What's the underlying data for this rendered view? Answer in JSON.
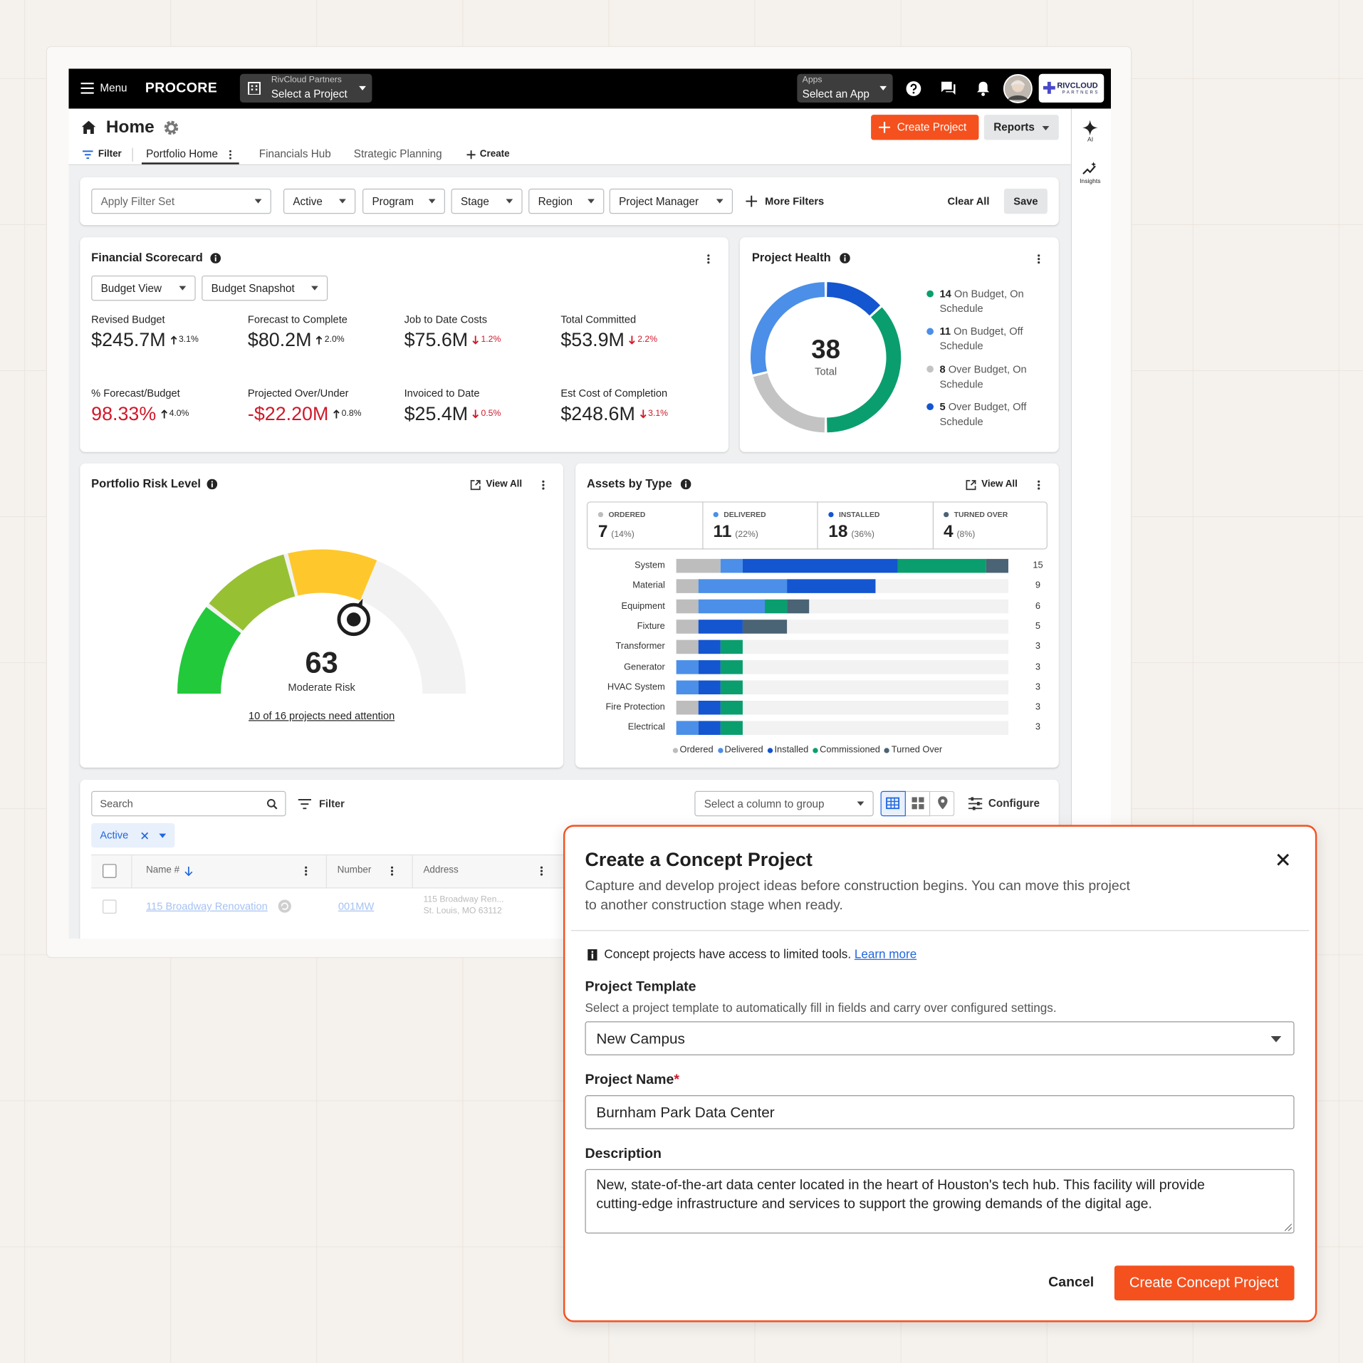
{
  "nav": {
    "menu": "Menu",
    "brand": "PROCORE",
    "company": "RivCloud Partners",
    "project": "Select a Project",
    "apps_label": "Apps",
    "apps": "Select an App",
    "partner": "RIVCLOUD",
    "partner_sub": "PARTNERS"
  },
  "header": {
    "title": "Home",
    "create_project": "Create Project",
    "reports": "Reports",
    "filter": "Filter",
    "tabs": [
      "Portfolio Home",
      "Financials Hub",
      "Strategic Planning"
    ],
    "create": "Create"
  },
  "sidebar": [
    "AI",
    "Insights"
  ],
  "filters": {
    "items": [
      "Apply Filter Set",
      "Active",
      "Program",
      "Stage",
      "Region",
      "Project Manager"
    ],
    "more": "More Filters",
    "clear": "Clear All",
    "save": "Save"
  },
  "scorecard": {
    "title": "Financial Scorecard",
    "views": [
      "Budget View",
      "Budget Snapshot"
    ],
    "metrics": [
      {
        "label": "Revised Budget",
        "value": "$245.7M",
        "change": "3.1%",
        "trend": "up"
      },
      {
        "label": "Forecast to Complete",
        "value": "$80.2M",
        "change": "2.0%",
        "trend": "up"
      },
      {
        "label": "Job to Date Costs",
        "value": "$75.6M",
        "change": "1.2%",
        "trend": "down"
      },
      {
        "label": "Total Committed",
        "value": "$53.9M",
        "change": "2.2%",
        "trend": "down"
      },
      {
        "label": "% Forecast/Budget",
        "value": "98.33%",
        "change": "4.0%",
        "trend": "up",
        "alert": true
      },
      {
        "label": "Projected Over/Under",
        "value": "-$22.20M",
        "change": "0.8%",
        "trend": "up",
        "alert": true
      },
      {
        "label": "Invoiced to Date",
        "value": "$25.4M",
        "change": "0.5%",
        "trend": "down"
      },
      {
        "label": "Est Cost of Completion",
        "value": "$248.6M",
        "change": "3.1%",
        "trend": "down"
      }
    ]
  },
  "health": {
    "type": "donut",
    "title": "Project Health",
    "total": 38,
    "total_label": "Total",
    "segments": [
      {
        "count": 14,
        "label": "On Budget, On Schedule",
        "color": "#0a9e6e"
      },
      {
        "count": 11,
        "label": "On Budget, Off Schedule",
        "color": "#4b8fe8"
      },
      {
        "count": 8,
        "label": "Over Budget, On Schedule",
        "color": "#c3c3c3"
      },
      {
        "count": 5,
        "label": "Over Budget, Off Schedule",
        "color": "#1455d0"
      }
    ]
  },
  "risk": {
    "type": "gauge",
    "title": "Portfolio Risk Level",
    "view_all": "View All",
    "value": 63,
    "range": [
      0,
      100
    ],
    "label": "Moderate Risk",
    "link": "10 of 16 projects need attention",
    "colors": [
      "#22c93b",
      "#97c133",
      "#fec82c"
    ],
    "track": "#f2f2f2"
  },
  "assets": {
    "type": "stacked-bar",
    "title": "Assets by Type",
    "view_all": "View All",
    "summary": [
      {
        "name": "ORDERED",
        "count": 7,
        "share": "(14%)",
        "color": "#bdbdbd"
      },
      {
        "name": "DELIVERED",
        "count": 11,
        "share": "(22%)",
        "color": "#4b8fe8"
      },
      {
        "name": "INSTALLED",
        "count": 18,
        "share": "(36%)",
        "color": "#1455d0"
      },
      {
        "name": "TURNED OVER",
        "count": 4,
        "share": "(8%)",
        "color": "#4a6375"
      }
    ],
    "categories": [
      "System",
      "Material",
      "Equipment",
      "Fixture",
      "Transformer",
      "Generator",
      "HVAC System",
      "Fire Protection",
      "Electrical"
    ],
    "totals": [
      15,
      9,
      6,
      5,
      3,
      3,
      3,
      3,
      3
    ],
    "xlim": [
      0,
      15
    ],
    "track": "#f2f2f2",
    "series": [
      {
        "name": "Ordered",
        "color": "#bdbdbd",
        "values": [
          2,
          1,
          1,
          1,
          1,
          0,
          0,
          1,
          0
        ]
      },
      {
        "name": "Delivered",
        "color": "#4b8fe8",
        "values": [
          1,
          4,
          3,
          0,
          0,
          1,
          1,
          0,
          1
        ]
      },
      {
        "name": "Installed",
        "color": "#1455d0",
        "values": [
          7,
          4,
          0,
          2,
          1,
          1,
          1,
          1,
          1
        ]
      },
      {
        "name": "Commissioned",
        "color": "#0a9e6e",
        "values": [
          4,
          0,
          1,
          0,
          1,
          1,
          1,
          1,
          1
        ]
      },
      {
        "name": "Turned Over",
        "color": "#4a6375",
        "values": [
          1,
          0,
          1,
          2,
          0,
          0,
          0,
          0,
          0
        ]
      }
    ]
  },
  "table": {
    "search": "Search",
    "filter": "Filter",
    "group": "Select a column to group",
    "configure": "Configure",
    "chip": "Active",
    "columns": [
      "Name #",
      "Number",
      "Address"
    ],
    "rows": [
      [
        "115 Broadway Renovation",
        "001MW",
        "115 Broadway Ren...",
        "St. Louis, MO 63112"
      ]
    ]
  },
  "modal": {
    "title": "Create a Concept Project",
    "description": "Capture and develop project ideas before construction begins. You can move this project",
    "description_2": "to another construction stage when ready.",
    "info": "Concept projects have access to limited tools.",
    "learn_more": "Learn more",
    "template_label": "Project Template",
    "template_help": "Select a project template to automatically fill in fields and carry over configured settings.",
    "template_value": "New Campus",
    "name_label": "Project Name",
    "required": "*",
    "name_value": "Burnham Park Data Center",
    "desc_label": "Description",
    "desc_value": "New, state-of-the-art data center located in the heart of Houston's tech hub. This facility will provide",
    "desc_value_2": "cutting-edge infrastructure and services to support the growing demands of the digital age.",
    "cancel": "Cancel",
    "submit": "Create Concept Project"
  }
}
